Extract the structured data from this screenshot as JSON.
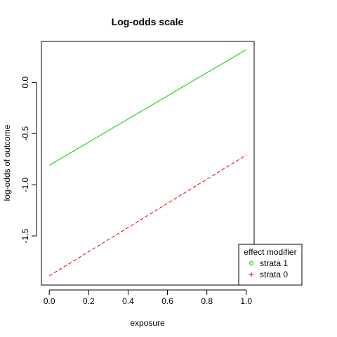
{
  "chart_data": {
    "type": "line",
    "title": "Log-odds scale",
    "xlabel": "exposure",
    "ylabel": "log-odds of outcome",
    "xlim": [
      -0.04,
      1.04
    ],
    "ylim": [
      -1.98,
      0.4
    ],
    "x_ticks": [
      0.0,
      0.2,
      0.4,
      0.6,
      0.8,
      1.0
    ],
    "x_tick_labels": [
      "0.0",
      "0.2",
      "0.4",
      "0.6",
      "0.8",
      "1.0"
    ],
    "y_ticks": [
      -1.5,
      -1.0,
      -0.5,
      0.0
    ],
    "y_tick_labels": [
      "-1.5",
      "-1.0",
      "-0.5",
      "0.0"
    ],
    "grid": false,
    "legend": {
      "title": "effect modifier",
      "placement": "bottom-right, overlapping plot border",
      "entries": [
        {
          "label": "strata 1",
          "color": "#00cc00",
          "symbol": "circle"
        },
        {
          "label": "strata 0",
          "color": "#dd0000",
          "symbol": "plus"
        }
      ]
    },
    "series": [
      {
        "name": "strata 1",
        "color": "#00cc00",
        "dash": "solid",
        "x": [
          0.0,
          1.0
        ],
        "y": [
          -0.81,
          0.32
        ]
      },
      {
        "name": "strata 0",
        "color": "#dd0000",
        "dash": "dashed",
        "x": [
          0.0,
          1.0
        ],
        "y": [
          -1.89,
          -0.71
        ]
      }
    ]
  }
}
